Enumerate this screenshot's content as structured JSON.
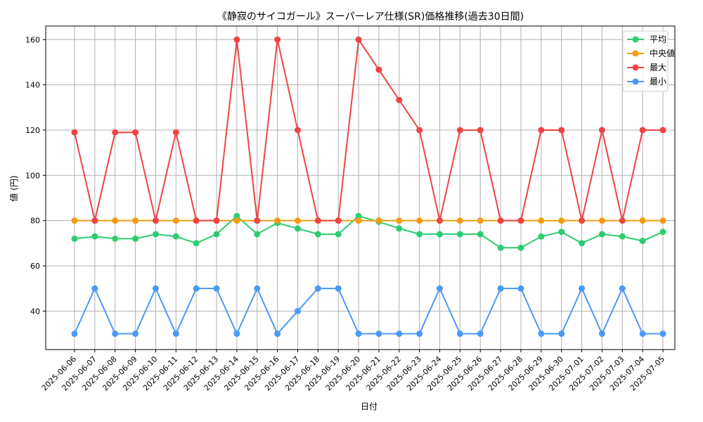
{
  "chart_data": {
    "type": "line",
    "title": "《静寂のサイコガール》スーパーレア仕様(SR)価格推移(過去30日間)",
    "xlabel": "日付",
    "ylabel": "値 (円)",
    "ylim": [
      23,
      166
    ],
    "yticks": [
      40,
      60,
      80,
      100,
      120,
      140,
      160
    ],
    "grid": true,
    "legend_position": "top-right",
    "categories": [
      "2025-06-06",
      "2025-06-07",
      "2025-06-08",
      "2025-06-09",
      "2025-06-10",
      "2025-06-11",
      "2025-06-12",
      "2025-06-13",
      "2025-06-14",
      "2025-06-15",
      "2025-06-16",
      "2025-06-17",
      "2025-06-18",
      "2025-06-19",
      "2025-06-20",
      "2025-06-21",
      "2025-06-22",
      "2025-06-23",
      "2025-06-24",
      "2025-06-25",
      "2025-06-26",
      "2025-06-27",
      "2025-06-28",
      "2025-06-29",
      "2025-06-30",
      "2025-07-01",
      "2025-07-02",
      "2025-07-03",
      "2025-07-04",
      "2025-07-05"
    ],
    "series": [
      {
        "name": "平均",
        "color": "#2ecc71",
        "values": [
          72,
          73,
          72,
          72,
          74,
          73,
          70,
          74,
          82,
          74,
          79,
          76.5,
          74,
          74,
          82,
          79.5,
          76.5,
          74,
          74,
          74,
          74,
          68,
          68,
          73,
          75,
          70,
          74,
          73,
          71,
          75
        ]
      },
      {
        "name": "中央値",
        "color": "#f39c12",
        "values": [
          80,
          80,
          80,
          80,
          80,
          80,
          80,
          80,
          80,
          80,
          80,
          80,
          80,
          80,
          80,
          80,
          80,
          80,
          80,
          80,
          80,
          80,
          80,
          80,
          80,
          80,
          80,
          80,
          80,
          80
        ]
      },
      {
        "name": "最大",
        "color": "#ef4444",
        "values": [
          119,
          80,
          119,
          119,
          80,
          119,
          80,
          80,
          160,
          80,
          160,
          120,
          80,
          80,
          160,
          146.7,
          133.3,
          120,
          80,
          120,
          120,
          80,
          80,
          120,
          120,
          80,
          120,
          80,
          120,
          120
        ]
      },
      {
        "name": "最小",
        "color": "#4a9af5",
        "values": [
          30,
          50,
          30,
          30,
          50,
          30,
          50,
          50,
          30,
          50,
          30,
          40,
          50,
          50,
          30,
          30,
          30,
          30,
          50,
          30,
          30,
          50,
          50,
          30,
          30,
          50,
          30,
          50,
          30,
          30
        ]
      }
    ]
  }
}
